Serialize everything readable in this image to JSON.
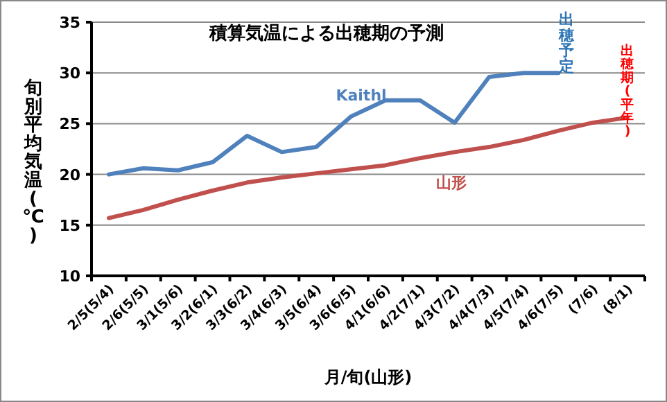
{
  "chart_data": {
    "type": "line",
    "title": "積算気温による出穂期の予測",
    "xlabel": "月/旬(山形)",
    "ylabel": "旬別平均気温(℃)",
    "categories": [
      "2/5(5/4)",
      "2/6(5/5)",
      "3/1(5/6)",
      "3/2(6/1)",
      "3/3(6/2)",
      "3/4(6/3)",
      "3/5(6/4)",
      "3/6(6/5)",
      "4/1(6/6)",
      "4/2(7/1)",
      "4/3(7/2)",
      "4/4(7/3)",
      "4/5(7/4)",
      "4/6(7/5)",
      "(7/6)",
      "(8/1)"
    ],
    "series": [
      {
        "name": "Kaithl",
        "color": "#4f81bd",
        "values": [
          20.0,
          20.6,
          20.4,
          21.2,
          23.8,
          22.2,
          22.7,
          25.7,
          27.3,
          27.3,
          25.1,
          29.6,
          30.0,
          30.0,
          null,
          null
        ]
      },
      {
        "name": "山形",
        "color": "#c0504d",
        "values": [
          15.7,
          16.5,
          17.5,
          18.4,
          19.2,
          19.7,
          20.1,
          20.5,
          20.9,
          21.6,
          22.2,
          22.7,
          23.4,
          24.3,
          25.1,
          25.6
        ]
      }
    ],
    "annotations": [
      {
        "text": "出穂予定",
        "x": "4/6(7/5)",
        "y": 30.0
      },
      {
        "text": "出穂期(平年)",
        "x": "(8/1)",
        "y": 25.6
      }
    ],
    "ylim": [
      10,
      35
    ],
    "yticks": [
      10,
      15,
      20,
      25,
      30,
      35
    ],
    "grid": "y",
    "legend": false,
    "marker": "none",
    "line_style": "solid"
  }
}
